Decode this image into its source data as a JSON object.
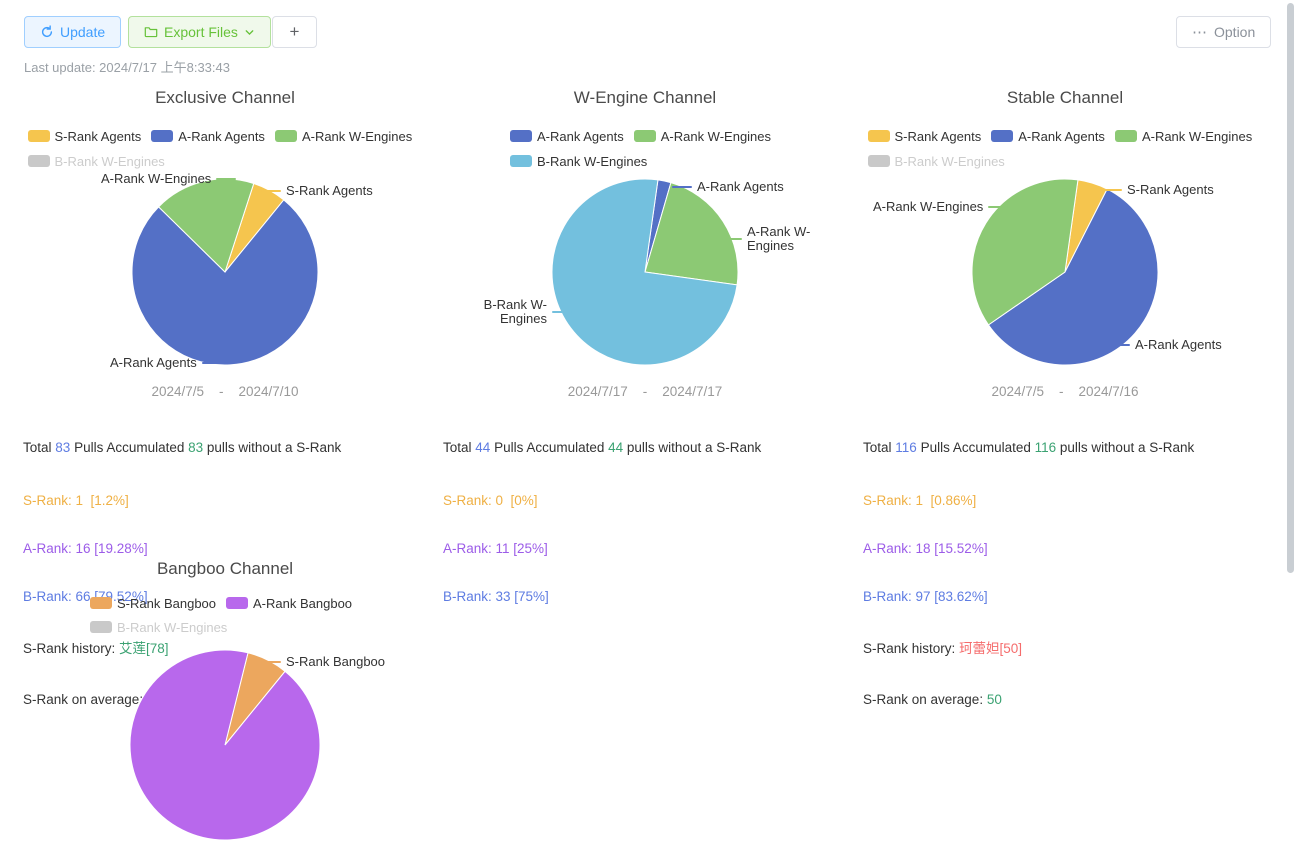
{
  "toolbar": {
    "update_label": "Update",
    "export_label": "Export Files",
    "add_label": "+",
    "option_label": "Option",
    "last_update": "Last update: 2024/7/17 上午8:33:43"
  },
  "icons": {
    "option_ellipsis": "⋯"
  },
  "ui": {
    "date_separator": "-"
  },
  "palette": {
    "s_rank_yellow": "#f5c54e",
    "a_rank_blue": "#5470c6",
    "a_rank_green": "#8cc974",
    "b_rank_lightblue": "#73c0de",
    "s_bangboo_orange": "#eca75e",
    "a_bangboo_purple": "#b868ec",
    "disabled_gray": "#c9c9c9",
    "stat_orange": "#efb044",
    "stat_purple": "#9c5ce8",
    "stat_blue": "#5e7ce2",
    "stat_green": "#3ba272",
    "stat_red": "#f56c6c",
    "btn_update_blue": "#409eff",
    "btn_export_green": "#67c23a"
  },
  "chart_data": [
    {
      "type": "pie",
      "title": "Exclusive Channel",
      "legend": [
        {
          "label": "S-Rank Agents",
          "color": "#f5c54e",
          "disabled": false
        },
        {
          "label": "A-Rank Agents",
          "color": "#5470c6",
          "disabled": false
        },
        {
          "label": "A-Rank W-Engines",
          "color": "#8cc974",
          "disabled": false
        },
        {
          "label": "B-Rank W-Engines",
          "color": "#c9c9c9",
          "disabled": true
        }
      ],
      "slices": [
        {
          "label": "S-Rank Agents",
          "value": 1,
          "color": "#f5c54e"
        },
        {
          "label": "A-Rank Agents",
          "value": 13,
          "color": "#5470c6"
        },
        {
          "label": "A-Rank W-Engines",
          "value": 3,
          "color": "#8cc974"
        }
      ],
      "start_angle_deg": 18,
      "date_range": [
        "2024/7/5",
        "2024/7/10"
      ]
    },
    {
      "type": "pie",
      "title": "W-Engine Channel",
      "legend": [
        {
          "label": "A-Rank Agents",
          "color": "#5470c6",
          "disabled": false
        },
        {
          "label": "A-Rank W-Engines",
          "color": "#8cc974",
          "disabled": false
        },
        {
          "label": "B-Rank W-Engines",
          "color": "#73c0de",
          "disabled": false
        }
      ],
      "slices": [
        {
          "label": "A-Rank Agents",
          "value": 1,
          "color": "#5470c6"
        },
        {
          "label": "A-Rank W-Engines",
          "value": 10,
          "color": "#8cc974"
        },
        {
          "label": "B-Rank W-Engines",
          "value": 33,
          "color": "#73c0de"
        }
      ],
      "start_angle_deg": 8,
      "date_range": [
        "2024/7/17",
        "2024/7/17"
      ]
    },
    {
      "type": "pie",
      "title": "Stable Channel",
      "legend": [
        {
          "label": "S-Rank Agents",
          "color": "#f5c54e",
          "disabled": false
        },
        {
          "label": "A-Rank Agents",
          "color": "#5470c6",
          "disabled": false
        },
        {
          "label": "A-Rank W-Engines",
          "color": "#8cc974",
          "disabled": false
        },
        {
          "label": "B-Rank W-Engines",
          "color": "#c9c9c9",
          "disabled": true
        }
      ],
      "slices": [
        {
          "label": "S-Rank Agents",
          "value": 1,
          "color": "#f5c54e"
        },
        {
          "label": "A-Rank Agents",
          "value": 11,
          "color": "#5470c6"
        },
        {
          "label": "A-Rank W-Engines",
          "value": 7,
          "color": "#8cc974"
        }
      ],
      "start_angle_deg": 8,
      "date_range": [
        "2024/7/5",
        "2024/7/16"
      ]
    },
    {
      "type": "pie",
      "title": "Bangboo Channel",
      "legend": [
        {
          "label": "S-Rank Bangboo",
          "color": "#eca75e",
          "disabled": false
        },
        {
          "label": "A-Rank Bangboo",
          "color": "#b868ec",
          "disabled": false
        },
        {
          "label": "B-Rank W-Engines",
          "color": "#c9c9c9",
          "disabled": true
        }
      ],
      "slices": [
        {
          "label": "S-Rank Bangboo",
          "value": 7,
          "color": "#eca75e"
        },
        {
          "label": "A-Rank Bangboo",
          "value": 93,
          "color": "#b868ec"
        }
      ],
      "start_angle_deg": 14
    }
  ],
  "channels": [
    {
      "stats": {
        "total_prefix": "Total ",
        "total": "83",
        "mid": " Pulls Accumulated ",
        "accumulated": "83",
        "suffix": " pulls without a S-Rank",
        "s_rank_line": "S-Rank: 1  [1.2%]",
        "a_rank_line": "A-Rank: 16 [19.28%]",
        "b_rank_line": "B-Rank: 66 [79.52%]",
        "history_label": "S-Rank history: ",
        "history_value": "艾莲[78]",
        "average_label": "S-Rank on average: ",
        "average_value": "78"
      }
    },
    {
      "stats": {
        "total_prefix": "Total ",
        "total": "44",
        "mid": " Pulls Accumulated ",
        "accumulated": "44",
        "suffix": " pulls without a S-Rank",
        "s_rank_line": "S-Rank: 0  [0%]",
        "a_rank_line": "A-Rank: 11 [25%]",
        "b_rank_line": "B-Rank: 33 [75%]"
      }
    },
    {
      "stats": {
        "total_prefix": "Total ",
        "total": "116",
        "mid": " Pulls Accumulated ",
        "accumulated": "116",
        "suffix": " pulls without a S-Rank",
        "s_rank_line": "S-Rank: 1  [0.86%]",
        "a_rank_line": "A-Rank: 18 [15.52%]",
        "b_rank_line": "B-Rank: 97 [83.62%]",
        "history_label": "S-Rank history: ",
        "history_value": "珂蕾妲[50]",
        "average_label": "S-Rank on average: ",
        "average_value": "50"
      }
    },
    {}
  ]
}
